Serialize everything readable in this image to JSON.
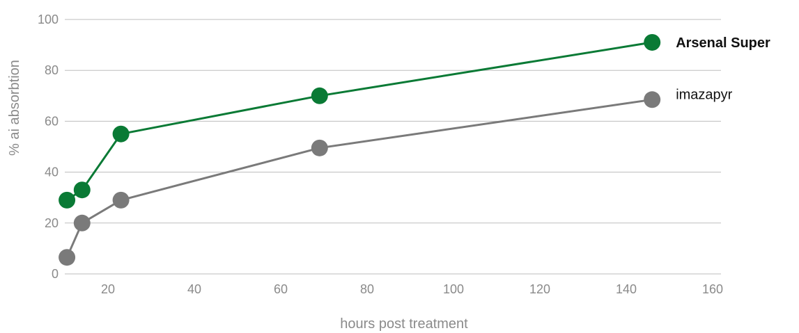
{
  "chart_data": {
    "type": "line",
    "xlabel": "hours post treatment",
    "ylabel": "% ai absorbtion",
    "xlim": [
      10,
      160
    ],
    "ylim": [
      0,
      100
    ],
    "x_ticks": [
      20,
      40,
      60,
      80,
      100,
      120,
      140,
      160
    ],
    "y_ticks": [
      0,
      20,
      40,
      60,
      80,
      100
    ],
    "grid": true,
    "series": [
      {
        "name": "Arsenal Super",
        "color": "#0a7a35",
        "label_bold": true,
        "x": [
          10.5,
          14,
          23,
          69,
          146
        ],
        "y": [
          29,
          33,
          55,
          70,
          91
        ]
      },
      {
        "name": "imazapyr",
        "color": "#7a7a7a",
        "label_bold": false,
        "x": [
          10.5,
          14,
          23,
          69,
          146
        ],
        "y": [
          6.5,
          20,
          29,
          49.5,
          68.5
        ]
      }
    ]
  }
}
